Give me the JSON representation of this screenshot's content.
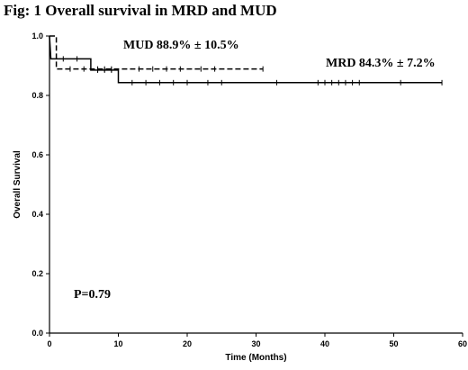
{
  "figure": {
    "title": "Fig: 1   Overall survival in MRD and MUD"
  },
  "chart_data": {
    "type": "line",
    "title": "Overall survival in MRD and MUD",
    "xlabel": "Time (Months)",
    "ylabel": "Overall Survival",
    "xlim": [
      0,
      60
    ],
    "ylim": [
      0.0,
      1.0
    ],
    "x_ticks": [
      0,
      10,
      20,
      30,
      40,
      50,
      60
    ],
    "y_ticks": [
      0.0,
      0.2,
      0.4,
      0.6,
      0.8,
      1.0
    ],
    "x_tick_labels": [
      "0",
      "10",
      "20",
      "30",
      "40",
      "50",
      "60"
    ],
    "y_tick_labels": [
      "0.0",
      "0.2",
      "0.4",
      "0.6",
      "0.8",
      "1.0"
    ],
    "grid": false,
    "series": [
      {
        "name": "MRD",
        "style": "solid",
        "color": "#000000",
        "steps": [
          [
            0,
            1.0
          ],
          [
            0.2,
            0.923
          ],
          [
            6,
            0.923
          ],
          [
            6,
            0.885
          ],
          [
            10,
            0.885
          ],
          [
            10,
            0.843
          ],
          [
            57,
            0.843
          ]
        ],
        "censored": [
          [
            2,
            0.923
          ],
          [
            4,
            0.923
          ],
          [
            7,
            0.885
          ],
          [
            8,
            0.885
          ],
          [
            9,
            0.885
          ],
          [
            12,
            0.843
          ],
          [
            14,
            0.843
          ],
          [
            16,
            0.843
          ],
          [
            18,
            0.843
          ],
          [
            20,
            0.843
          ],
          [
            23,
            0.843
          ],
          [
            25,
            0.843
          ],
          [
            33,
            0.843
          ],
          [
            39,
            0.843
          ],
          [
            40,
            0.843
          ],
          [
            41,
            0.843
          ],
          [
            42,
            0.843
          ],
          [
            43,
            0.843
          ],
          [
            44,
            0.843
          ],
          [
            45,
            0.843
          ],
          [
            51,
            0.843
          ],
          [
            57,
            0.843
          ]
        ]
      },
      {
        "name": "MUD",
        "style": "dashed",
        "color": "#000000",
        "steps": [
          [
            0,
            1.0
          ],
          [
            1,
            1.0
          ],
          [
            1,
            0.889
          ],
          [
            31,
            0.889
          ]
        ],
        "censored": [
          [
            3,
            0.889
          ],
          [
            5,
            0.889
          ],
          [
            7,
            0.889
          ],
          [
            8,
            0.889
          ],
          [
            9,
            0.889
          ],
          [
            13,
            0.889
          ],
          [
            15,
            0.889
          ],
          [
            17,
            0.889
          ],
          [
            19,
            0.889
          ],
          [
            22,
            0.889
          ],
          [
            24,
            0.889
          ],
          [
            31,
            0.889
          ]
        ]
      }
    ],
    "annotations": {
      "mud_label": "MUD 88.9% ± 10.5%",
      "mrd_label": "MRD 84.3% ± 7.2%",
      "p_value": "P=0.79"
    }
  }
}
